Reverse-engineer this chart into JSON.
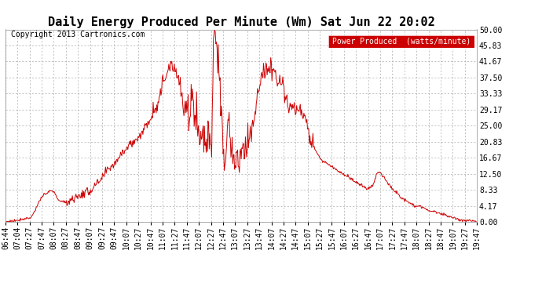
{
  "title": "Daily Energy Produced Per Minute (Wm) Sat Jun 22 20:02",
  "copyright": "Copyright 2013 Cartronics.com",
  "legend_label": "Power Produced  (watts/minute)",
  "legend_bg": "#cc0000",
  "legend_fg": "#ffffff",
  "line_color": "#cc0000",
  "bg_color": "#ffffff",
  "grid_color": "#aaaaaa",
  "ylim": [
    0,
    50
  ],
  "yticks": [
    0.0,
    4.17,
    8.33,
    12.5,
    16.67,
    20.83,
    25.0,
    29.17,
    33.33,
    37.5,
    41.67,
    45.83,
    50.0
  ],
  "ytick_labels": [
    "0.00",
    "4.17",
    "8.33",
    "12.50",
    "16.67",
    "20.83",
    "25.00",
    "29.17",
    "33.33",
    "37.50",
    "41.67",
    "45.83",
    "50.00"
  ],
  "xtick_labels": [
    "06:44",
    "07:04",
    "07:27",
    "07:47",
    "08:07",
    "08:27",
    "08:47",
    "09:07",
    "09:27",
    "09:47",
    "10:07",
    "10:27",
    "10:47",
    "11:07",
    "11:27",
    "11:47",
    "12:07",
    "12:27",
    "12:47",
    "13:07",
    "13:27",
    "13:47",
    "14:07",
    "14:27",
    "14:47",
    "15:07",
    "15:27",
    "15:47",
    "16:07",
    "16:27",
    "16:47",
    "17:07",
    "17:27",
    "17:47",
    "18:07",
    "18:27",
    "18:47",
    "19:07",
    "19:27",
    "19:47"
  ],
  "title_fontsize": 11,
  "copyright_fontsize": 7,
  "tick_fontsize": 7,
  "legend_fontsize": 7
}
